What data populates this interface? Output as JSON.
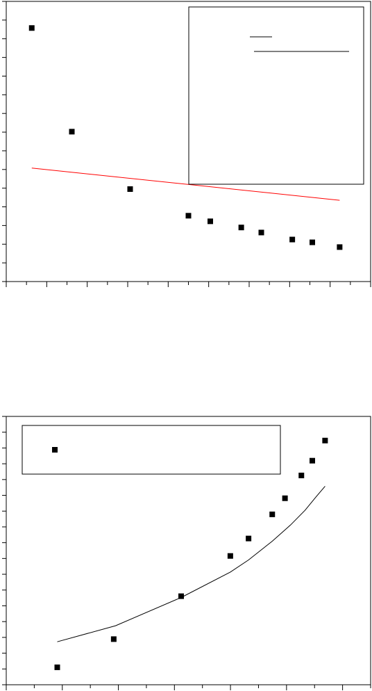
{
  "chart_data": [
    {
      "type": "scatter",
      "xlim": [
        0,
        100
      ],
      "ylim": [
        0,
        100
      ],
      "x_ticks": 18,
      "y_ticks": 15,
      "grid": false,
      "legend_placement": "top-right",
      "series": [
        {
          "kind": "points",
          "x": [
            7,
            18,
            34,
            50,
            56,
            64.5,
            70,
            78.5,
            84,
            91.5
          ],
          "y": [
            90.5,
            53.5,
            33,
            23.5,
            21.5,
            19.3,
            17.5,
            15,
            14,
            12.3
          ]
        },
        {
          "kind": "line",
          "color": "#ff0000",
          "x": [
            7,
            91.5
          ],
          "y": [
            40.5,
            29
          ]
        }
      ]
    },
    {
      "type": "scatter",
      "xlim": [
        0,
        100
      ],
      "ylim": [
        0,
        100
      ],
      "x_ticks": 13,
      "y_ticks": 17,
      "grid": false,
      "legend_placement": "top-left",
      "series": [
        {
          "kind": "points",
          "x": [
            14,
            29.5,
            48,
            61.5,
            66.5,
            73,
            76.5,
            81,
            84,
            87.5
          ],
          "y": [
            6.5,
            17,
            33,
            48,
            54.5,
            63.5,
            69.5,
            78,
            83.5,
            91
          ]
        },
        {
          "kind": "line",
          "color": "#000000",
          "x": [
            14,
            30,
            48,
            61.5,
            66.5,
            73,
            78,
            82,
            85,
            87.5
          ],
          "y": [
            16,
            22,
            32.5,
            42,
            46.5,
            53.5,
            59.5,
            65,
            70,
            74
          ]
        }
      ]
    }
  ]
}
